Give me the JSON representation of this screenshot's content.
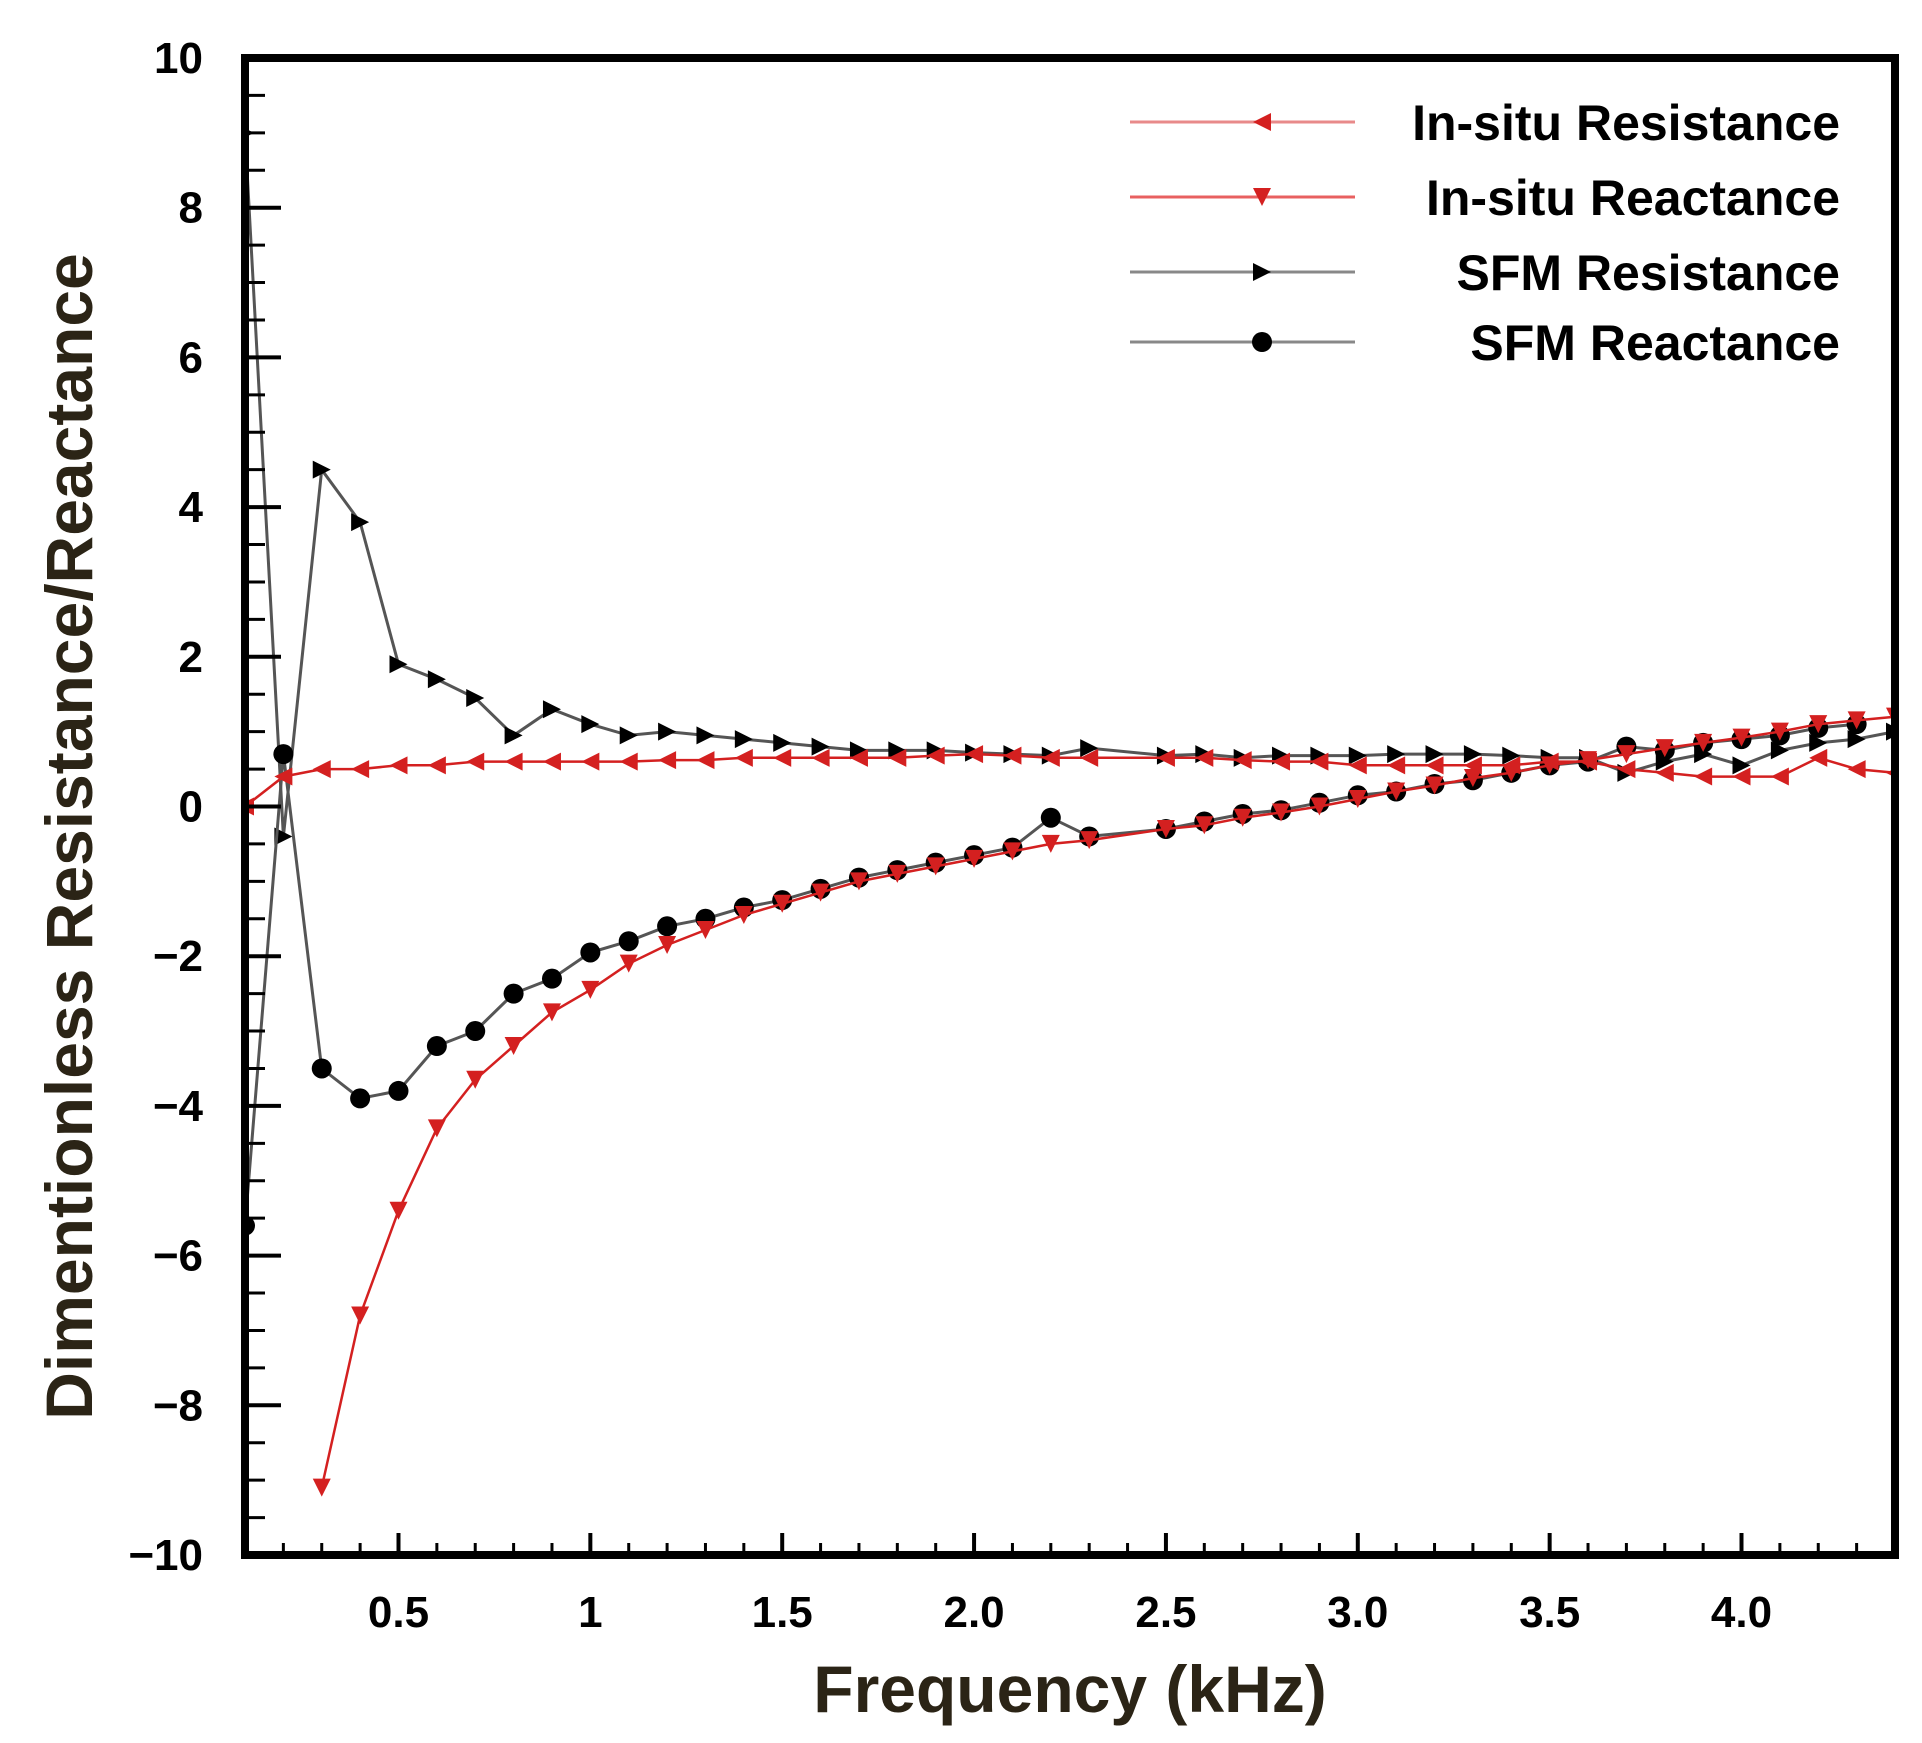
{
  "chart_data": {
    "type": "line",
    "title": "",
    "xlabel": "Frequency (kHz)",
    "ylabel": "Dimentionless Resistance/Reactance",
    "xlim": [
      0.1,
      4.4
    ],
    "ylim": [
      -10,
      10
    ],
    "x_ticks": [
      0.5,
      1,
      1.5,
      2.0,
      2.5,
      3.0,
      3.5,
      4.0
    ],
    "x_tick_labels": [
      "0.5",
      "1",
      "1.5",
      "2.0",
      "2.5",
      "3.0",
      "3.5",
      "4.0"
    ],
    "y_ticks": [
      -10,
      -8,
      -6,
      -4,
      -2,
      0,
      2,
      4,
      6,
      8,
      10
    ],
    "y_tick_labels": [
      "−10",
      "−8",
      "−6",
      "−4",
      "−2",
      "0",
      "2",
      "4",
      "6",
      "8",
      "10"
    ],
    "grid": false,
    "legend_position": "top-right",
    "series": [
      {
        "name": "In-situ Resistance",
        "color": "#d42020",
        "marker": "triangle-left",
        "x": [
          0.1,
          0.2,
          0.3,
          0.4,
          0.5,
          0.6,
          0.7,
          0.8,
          0.9,
          1.0,
          1.1,
          1.2,
          1.3,
          1.4,
          1.5,
          1.6,
          1.7,
          1.8,
          1.9,
          2.0,
          2.1,
          2.2,
          2.3,
          2.5,
          2.6,
          2.7,
          2.8,
          2.9,
          3.0,
          3.1,
          3.2,
          3.3,
          3.4,
          3.5,
          3.6,
          3.7,
          3.8,
          3.9,
          4.0,
          4.1,
          4.2,
          4.3,
          4.4
        ],
        "y": [
          0.0,
          0.4,
          0.5,
          0.5,
          0.55,
          0.55,
          0.6,
          0.6,
          0.6,
          0.6,
          0.6,
          0.62,
          0.62,
          0.65,
          0.65,
          0.65,
          0.65,
          0.65,
          0.68,
          0.7,
          0.68,
          0.65,
          0.65,
          0.65,
          0.65,
          0.62,
          0.6,
          0.6,
          0.55,
          0.55,
          0.55,
          0.55,
          0.55,
          0.6,
          0.6,
          0.5,
          0.45,
          0.4,
          0.4,
          0.4,
          0.65,
          0.5,
          0.45
        ]
      },
      {
        "name": "In-situ Reactance",
        "color": "#d42020",
        "marker": "triangle-down",
        "x": [
          0.3,
          0.4,
          0.5,
          0.6,
          0.7,
          0.8,
          0.9,
          1.0,
          1.1,
          1.2,
          1.3,
          1.4,
          1.5,
          1.6,
          1.7,
          1.8,
          1.9,
          2.0,
          2.1,
          2.2,
          2.3,
          2.5,
          2.6,
          2.7,
          2.8,
          2.9,
          3.0,
          3.1,
          3.2,
          3.3,
          3.4,
          3.5,
          3.6,
          3.7,
          3.8,
          3.9,
          4.0,
          4.1,
          4.2,
          4.3,
          4.4
        ],
        "y": [
          -9.1,
          -6.8,
          -5.4,
          -4.3,
          -3.65,
          -3.2,
          -2.75,
          -2.45,
          -2.1,
          -1.85,
          -1.65,
          -1.45,
          -1.3,
          -1.15,
          -1.0,
          -0.9,
          -0.8,
          -0.7,
          -0.6,
          -0.5,
          -0.45,
          -0.3,
          -0.25,
          -0.15,
          -0.08,
          0.0,
          0.1,
          0.2,
          0.28,
          0.38,
          0.45,
          0.55,
          0.62,
          0.7,
          0.78,
          0.85,
          0.92,
          1.0,
          1.1,
          1.15,
          1.2
        ]
      },
      {
        "name": "SFM  Resistance",
        "color": "#555555",
        "marker": "triangle-right",
        "x": [
          0.1,
          0.2,
          0.3,
          0.4,
          0.5,
          0.6,
          0.7,
          0.8,
          0.9,
          1.0,
          1.1,
          1.2,
          1.3,
          1.4,
          1.5,
          1.6,
          1.7,
          1.8,
          1.9,
          2.0,
          2.1,
          2.2,
          2.3,
          2.5,
          2.6,
          2.7,
          2.8,
          2.9,
          3.0,
          3.1,
          3.2,
          3.3,
          3.4,
          3.5,
          3.6,
          3.7,
          3.8,
          3.9,
          4.0,
          4.1,
          4.2,
          4.3,
          4.4
        ],
        "y": [
          9.0,
          -0.4,
          4.5,
          3.8,
          1.9,
          1.7,
          1.45,
          0.95,
          1.3,
          1.1,
          0.95,
          1.0,
          0.95,
          0.9,
          0.85,
          0.8,
          0.75,
          0.75,
          0.75,
          0.72,
          0.7,
          0.68,
          0.78,
          0.68,
          0.7,
          0.65,
          0.68,
          0.68,
          0.68,
          0.7,
          0.7,
          0.7,
          0.68,
          0.65,
          0.65,
          0.45,
          0.6,
          0.7,
          0.55,
          0.75,
          0.85,
          0.9,
          1.0
        ]
      },
      {
        "name": "SFM  Reactance",
        "color": "#555555",
        "marker": "circle",
        "x": [
          0.1,
          0.2,
          0.3,
          0.4,
          0.5,
          0.6,
          0.7,
          0.8,
          0.9,
          1.0,
          1.1,
          1.2,
          1.3,
          1.4,
          1.5,
          1.6,
          1.7,
          1.8,
          1.9,
          2.0,
          2.1,
          2.2,
          2.3,
          2.5,
          2.6,
          2.7,
          2.8,
          2.9,
          3.0,
          3.1,
          3.2,
          3.3,
          3.4,
          3.5,
          3.6,
          3.7,
          3.8,
          3.9,
          4.0,
          4.1,
          4.2,
          4.3
        ],
        "y": [
          -5.6,
          0.7,
          -3.5,
          -3.9,
          -3.8,
          -3.2,
          -3.0,
          -2.5,
          -2.3,
          -1.95,
          -1.8,
          -1.6,
          -1.5,
          -1.35,
          -1.25,
          -1.1,
          -0.95,
          -0.85,
          -0.75,
          -0.65,
          -0.55,
          -0.15,
          -0.4,
          -0.3,
          -0.2,
          -0.1,
          -0.05,
          0.05,
          0.15,
          0.2,
          0.3,
          0.35,
          0.45,
          0.55,
          0.6,
          0.8,
          0.75,
          0.85,
          0.9,
          0.95,
          1.05,
          1.1
        ]
      }
    ]
  }
}
